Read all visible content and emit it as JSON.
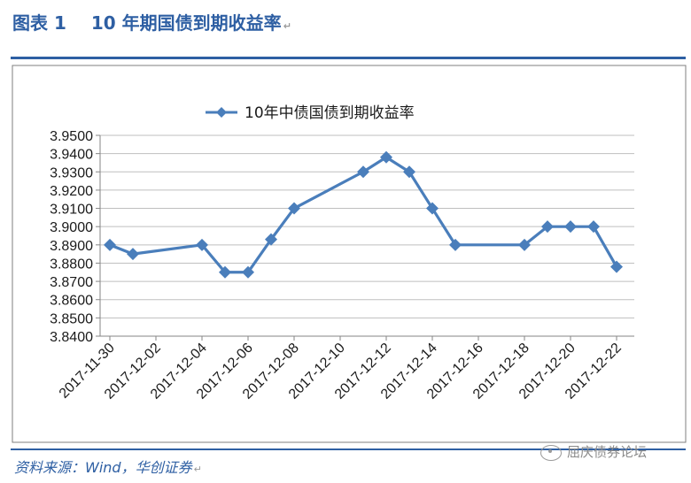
{
  "header": {
    "figure_label": "图表 1",
    "title": "10 年期国债到期收益率",
    "return_mark": "↵"
  },
  "footer": {
    "source": "资料来源：Wind，华创证券",
    "return_mark": "↵",
    "watermark": "屈庆债券论坛",
    "watermark_icon": "wechat-icon"
  },
  "chart_data": {
    "type": "line",
    "title": "",
    "xlabel": "",
    "ylabel": "",
    "ylim": [
      3.84,
      3.95
    ],
    "ystep": 0.01,
    "y_tick_labels": [
      "3.8400",
      "3.8500",
      "3.8600",
      "3.8700",
      "3.8800",
      "3.8900",
      "3.9000",
      "3.9100",
      "3.9200",
      "3.9300",
      "3.9400",
      "3.9500"
    ],
    "x_tick_labels": [
      "2017-11-30",
      "2017-12-02",
      "2017-12-04",
      "2017-12-06",
      "2017-12-08",
      "2017-12-10",
      "2017-12-12",
      "2017-12-14",
      "2017-12-16",
      "2017-12-18",
      "2017-12-20",
      "2017-12-22"
    ],
    "grid": true,
    "legend": "top-center",
    "series": [
      {
        "name": "10年中债国债到期收益率",
        "color": "#4a7ebb",
        "marker": "diamond",
        "points": [
          {
            "x": "2017-11-30",
            "y": 3.89
          },
          {
            "x": "2017-12-01",
            "y": 3.885
          },
          {
            "x": "2017-12-04",
            "y": 3.89
          },
          {
            "x": "2017-12-05",
            "y": 3.875
          },
          {
            "x": "2017-12-06",
            "y": 3.875
          },
          {
            "x": "2017-12-07",
            "y": 3.893
          },
          {
            "x": "2017-12-08",
            "y": 3.91
          },
          {
            "x": "2017-12-11",
            "y": 3.93
          },
          {
            "x": "2017-12-12",
            "y": 3.938
          },
          {
            "x": "2017-12-13",
            "y": 3.93
          },
          {
            "x": "2017-12-14",
            "y": 3.91
          },
          {
            "x": "2017-12-15",
            "y": 3.89
          },
          {
            "x": "2017-12-18",
            "y": 3.89
          },
          {
            "x": "2017-12-19",
            "y": 3.9
          },
          {
            "x": "2017-12-20",
            "y": 3.9
          },
          {
            "x": "2017-12-21",
            "y": 3.9
          },
          {
            "x": "2017-12-22",
            "y": 3.878
          }
        ]
      }
    ]
  }
}
